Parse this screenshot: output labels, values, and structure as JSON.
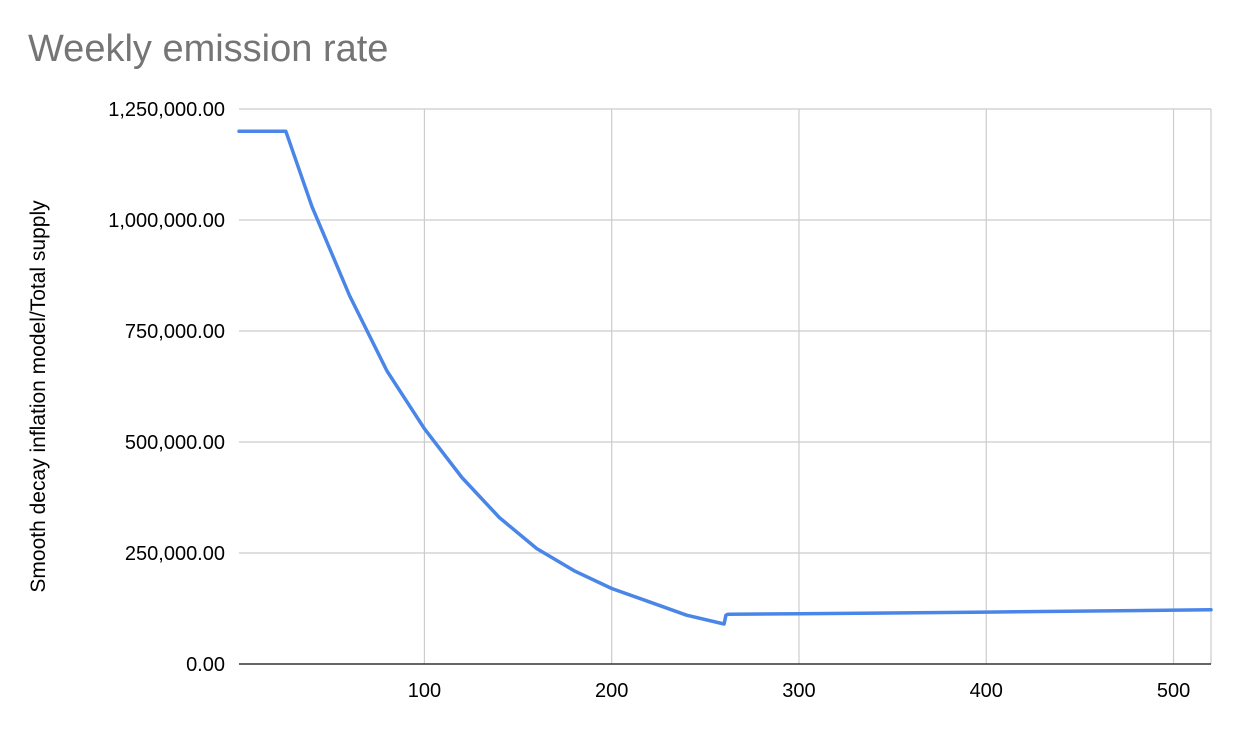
{
  "chart_data": {
    "type": "line",
    "title": "Weekly emission rate",
    "xlabel": "",
    "ylabel": "Smooth decay inflation model/Total supply",
    "xlim": [
      1,
      520
    ],
    "ylim": [
      0,
      1250000
    ],
    "x_ticks": [
      100,
      200,
      300,
      400,
      500
    ],
    "x_tick_labels": [
      "100",
      "200",
      "300",
      "400",
      "500"
    ],
    "y_ticks": [
      0,
      250000,
      500000,
      750000,
      1000000,
      1250000
    ],
    "y_tick_labels": [
      "0.00",
      "250,000.00",
      "500,000.00",
      "750,000.00",
      "1,000,000.00",
      "1,250,000.00"
    ],
    "grid": true,
    "legend": "none",
    "series": [
      {
        "color": "#4a86e8",
        "x": [
          1,
          26,
          40,
          60,
          80,
          100,
          120,
          140,
          160,
          180,
          200,
          220,
          240,
          260,
          261,
          262,
          300,
          400,
          520
        ],
        "y": [
          1200000,
          1200000,
          1030000,
          830000,
          660000,
          530000,
          420000,
          330000,
          260000,
          210000,
          170000,
          140000,
          110000,
          90000,
          110000,
          112000,
          113000,
          117000,
          122000
        ]
      }
    ]
  }
}
